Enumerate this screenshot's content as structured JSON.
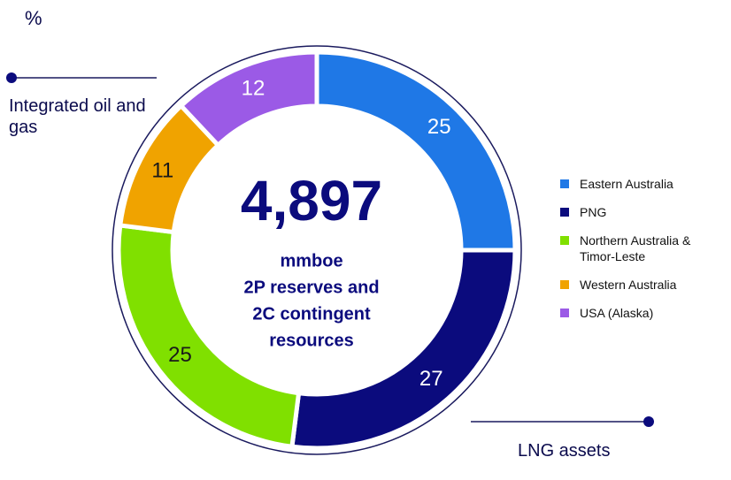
{
  "chart_data": {
    "type": "donut",
    "unit_label": "%",
    "center_value": "4,897",
    "center_lines": [
      "mmboe",
      "2P reserves and",
      "2C contingent",
      "resources"
    ],
    "categories": [
      "Eastern Australia",
      "PNG",
      "Northern Australia & Timor-Leste",
      "Western Australia",
      "USA (Alaska)"
    ],
    "values": [
      25,
      27,
      25,
      11,
      12
    ],
    "colors": [
      "#1f78e6",
      "#0b0b7d",
      "#80e000",
      "#f0a300",
      "#9b5ae6"
    ],
    "annotations": [
      "Integrated oil and gas",
      "LNG assets"
    ],
    "legend": "right"
  }
}
